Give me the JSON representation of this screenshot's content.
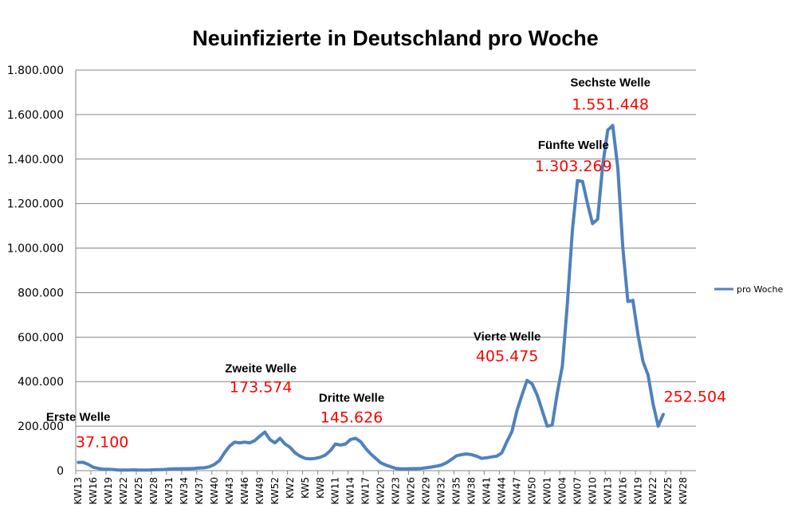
{
  "chart_data": {
    "type": "line",
    "title": "Neuinfizierte in Deutschland pro Woche",
    "xlabel": "",
    "ylabel": "",
    "ylim": [
      0,
      1800000
    ],
    "yticks": [
      0,
      200000,
      400000,
      600000,
      800000,
      1000000,
      1200000,
      1400000,
      1600000,
      1800000
    ],
    "ytick_labels": [
      "0",
      "200.000",
      "400.000",
      "600.000",
      "800.000",
      "1.000.000",
      "1.200.000",
      "1.400.000",
      "1.600.000",
      "1.800.000"
    ],
    "grid": true,
    "legend": {
      "position": "right",
      "entries": [
        "pro Woche"
      ]
    },
    "colors": {
      "series": "#4f81bd",
      "annotation_value": "#ff0000",
      "grid": "#868686"
    },
    "x_tick_labels": [
      "KW13",
      "KW16",
      "KW19",
      "KW22",
      "KW25",
      "KW28",
      "KW31",
      "KW34",
      "KW37",
      "KW40",
      "KW43",
      "KW46",
      "KW49",
      "KW52",
      "KW2",
      "KW5",
      "KW8",
      "KW11",
      "KW14",
      "KW17",
      "KW20",
      "KW23",
      "KW26",
      "KW29",
      "KW32",
      "KW35",
      "KW38",
      "KW41",
      "KW44",
      "KW47",
      "KW50",
      "KW01",
      "KW04",
      "KW07",
      "KW10",
      "KW13",
      "KW16",
      "KW19",
      "KW22",
      "KW25",
      "KW28"
    ],
    "series": [
      {
        "name": "pro Woche",
        "values": [
          37100,
          37100,
          28000,
          15000,
          10000,
          6000,
          6000,
          5000,
          3000,
          3000,
          3000,
          3500,
          3000,
          3000,
          3000,
          4000,
          4500,
          5000,
          7000,
          8000,
          8500,
          9000,
          9000,
          9500,
          12000,
          13000,
          17000,
          28000,
          45000,
          80000,
          110000,
          128000,
          125000,
          128000,
          125000,
          135000,
          155000,
          173574,
          140000,
          125000,
          145626,
          120000,
          105000,
          80000,
          65000,
          55000,
          53000,
          55000,
          60000,
          70000,
          90000,
          120000,
          115000,
          120000,
          140000,
          145626,
          130000,
          100000,
          75000,
          55000,
          35000,
          25000,
          17000,
          10000,
          8000,
          8000,
          9000,
          9000,
          10000,
          13000,
          16000,
          20000,
          25000,
          35000,
          50000,
          67000,
          72000,
          75000,
          72000,
          65000,
          55000,
          58000,
          62000,
          65000,
          80000,
          130000,
          175000,
          270000,
          340000,
          405475,
          390000,
          340000,
          270000,
          200000,
          205000,
          350000,
          470000,
          750000,
          1080000,
          1303269,
          1300000,
          1200000,
          1110000,
          1130000,
          1370000,
          1530000,
          1551448,
          1360000,
          1000000,
          760000,
          765000,
          610000,
          490000,
          430000,
          300000,
          200000,
          252504
        ]
      }
    ],
    "annotations": [
      {
        "label": "Erste Welle",
        "value": "37.100"
      },
      {
        "label": "Zweite Welle",
        "value": "173.574"
      },
      {
        "label": "Dritte Welle",
        "value": "145.626"
      },
      {
        "label": "Vierte Welle",
        "value": "405.475"
      },
      {
        "label": "Fünfte Welle",
        "value": "1.303.269"
      },
      {
        "label": "Sechste Welle",
        "value": "1.551.448"
      },
      {
        "label": "",
        "value": "252.504"
      }
    ]
  }
}
